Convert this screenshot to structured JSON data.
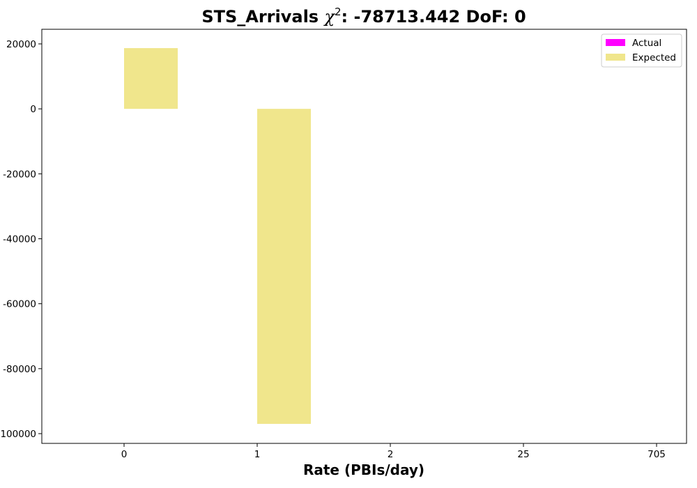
{
  "chart_data": {
    "type": "bar",
    "title_prefix": "STS_Arrivals ",
    "title_chi": "χ",
    "title_sup": "2",
    "title_suffix": ": -78713.442 DoF: 0",
    "xlabel": "Rate (PBIs/day)",
    "ylabel": "",
    "categories": [
      "0",
      "1",
      "2",
      "25",
      "705"
    ],
    "ylim": [
      -103000,
      24500
    ],
    "yticks": [
      20000,
      0,
      -20000,
      -40000,
      -60000,
      -80000,
      -100000
    ],
    "ytick_labels": [
      "20000",
      "0",
      "-20000",
      "-40000",
      "-60000",
      "-80000",
      "-100000"
    ],
    "grid": false,
    "legend_position": "top-right",
    "series": [
      {
        "name": "Actual",
        "color": "#ff00ff",
        "values": [
          0,
          0,
          0,
          0,
          0
        ]
      },
      {
        "name": "Expected",
        "color": "#f0e68c",
        "values": [
          18700,
          -97000,
          0,
          0,
          0
        ]
      }
    ]
  }
}
